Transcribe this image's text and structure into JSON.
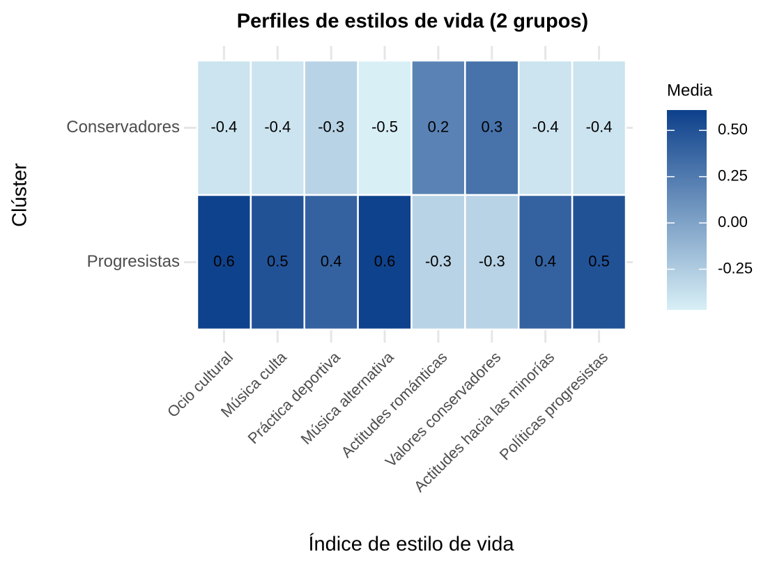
{
  "chart_data": {
    "type": "heatmap",
    "title": "Perfiles de estilos de vida (2 grupos)",
    "x_label": "Índice de estilo de vida",
    "y_label": "Clúster",
    "categories": [
      "Ocio cultural",
      "Música culta",
      "Práctica deportiva",
      "Música alternativa",
      "Actitudes románticas",
      "Valores conservadores",
      "Actitudes hacia las minorías",
      "Políticas progresistas"
    ],
    "series": [
      {
        "name": "Conservadores",
        "values": [
          -0.4,
          -0.4,
          -0.3,
          -0.5,
          0.2,
          0.3,
          -0.4,
          -0.4
        ]
      },
      {
        "name": "Progresistas",
        "values": [
          0.6,
          0.5,
          0.4,
          0.6,
          -0.3,
          -0.3,
          0.4,
          0.5
        ]
      }
    ],
    "legend_title": "Media",
    "clim": [
      -0.47,
      0.61
    ],
    "cticks": [
      {
        "value": -0.25,
        "label": "-0.25"
      },
      {
        "value": 0,
        "label": "0.00"
      },
      {
        "value": 0.25,
        "label": "0.25"
      },
      {
        "value": 0.5,
        "label": "0.50"
      }
    ],
    "color_low": "#d8eff6",
    "color_high": "#0d408b"
  }
}
